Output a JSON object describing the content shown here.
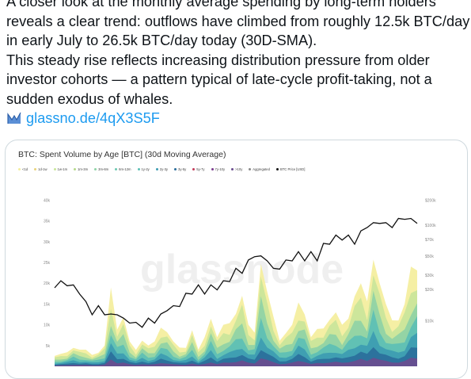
{
  "tweet": {
    "lines": [
      "A closer look at the monthly average spending by long-term holders",
      "reveals a clear trend: outflows have climbed from roughly 12.5k BTC/day",
      "in early July to 26.5k BTC/day today (30D-SMA).",
      "This steady rise reflects increasing distribution pressure from older",
      "investor cohorts — a pattern typical of late-cycle profit-taking, not a",
      "sudden exodus of whales."
    ],
    "link": "glassno.de/4qX3S5F",
    "link_icon": "glassnode-logo-icon"
  },
  "chart_data": {
    "type": "area",
    "title": "BTC: Spent Volume by Age [BTC] (30d Moving Average)",
    "watermark": "glassnode",
    "legend": [
      "<1d",
      "1d-1w",
      "1w-1m",
      "1m-3m",
      "3m-6m",
      "6m-12m",
      "1y-2y",
      "2y-3y",
      "3y-5y",
      "5y-7y",
      "7y-10y",
      ">10y",
      "Aggregated",
      "BTC Price [USD]"
    ],
    "colors": {
      "bands": [
        "#f4ee9c",
        "#c9e59a",
        "#8fd3a6",
        "#5cbfb5",
        "#3d9cb2",
        "#2a6e9b",
        "#6a4c8f"
      ],
      "price": "#111111",
      "accent": "#1d9bf0"
    },
    "y_left_ticks": [
      "40k",
      "35k",
      "30k",
      "25k",
      "20k",
      "15k",
      "10k",
      "5k"
    ],
    "y_right_ticks": [
      "$200k",
      "$100k",
      "$70k",
      "$50k",
      "$30k",
      "$20k",
      "$10k"
    ],
    "stack_total": [
      2.5,
      3,
      3.5,
      5,
      4,
      4,
      3,
      3.5,
      5,
      19,
      10,
      12,
      6,
      4,
      7,
      5,
      6,
      10,
      9,
      6,
      4.5,
      5,
      9,
      4,
      7,
      13,
      7,
      10,
      11,
      14,
      17,
      10,
      9,
      26,
      18,
      12,
      7,
      8,
      10,
      16,
      14,
      7,
      9,
      10,
      12,
      13,
      10,
      13,
      17,
      20,
      16,
      29,
      20,
      15,
      12,
      12,
      15,
      24,
      26
    ],
    "price": [
      19.5,
      20,
      20,
      19,
      18,
      15,
      13,
      14,
      13,
      12,
      13,
      11,
      11,
      10,
      10,
      11,
      11,
      12,
      14,
      14,
      15,
      17,
      18,
      19,
      18,
      19,
      19,
      20,
      21,
      23,
      23,
      25,
      27,
      26,
      26,
      23,
      24,
      25,
      26,
      27,
      26,
      27,
      26,
      29,
      30,
      31,
      31,
      31,
      30,
      32,
      34,
      34,
      35,
      34,
      34,
      35,
      36,
      35,
      35
    ]
  }
}
